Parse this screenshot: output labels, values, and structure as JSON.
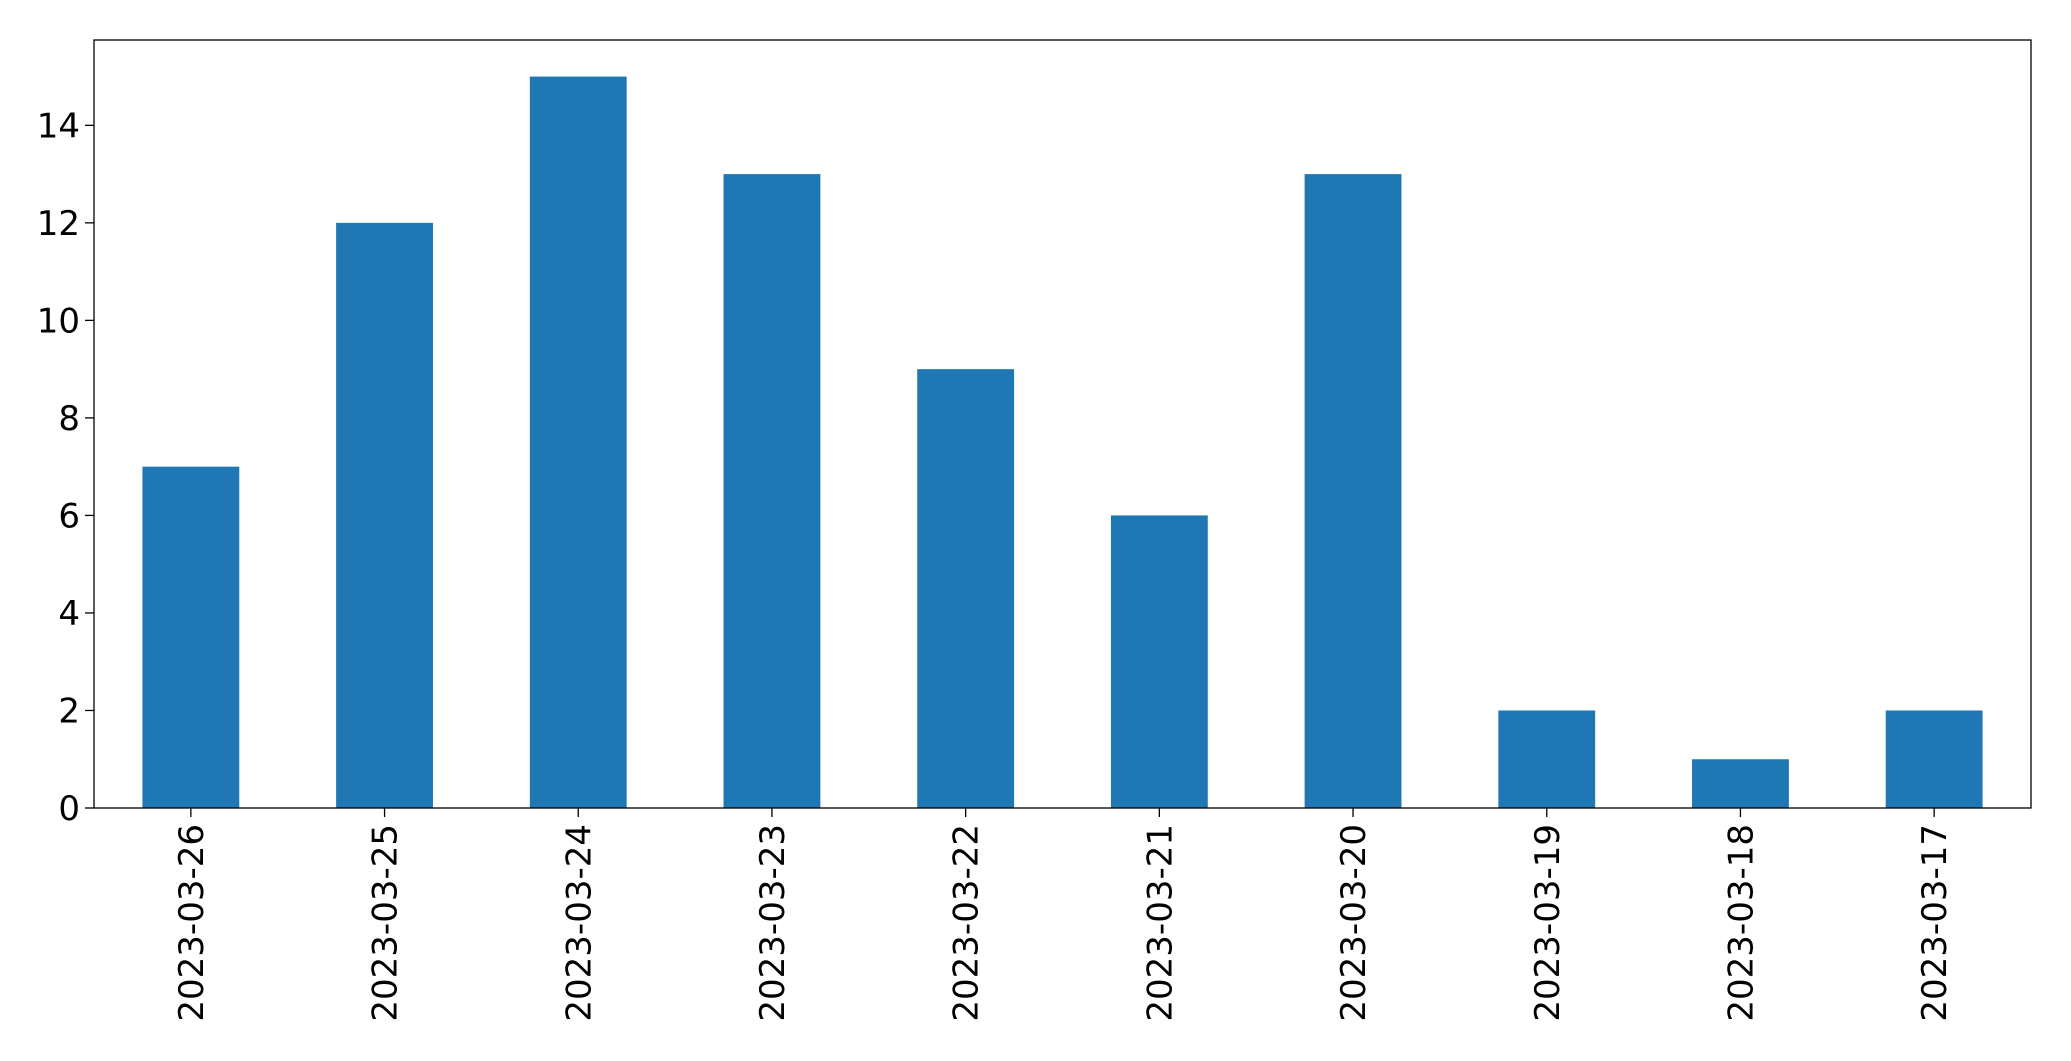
{
  "chart_data": {
    "type": "bar",
    "categories": [
      "2023-03-26",
      "2023-03-25",
      "2023-03-24",
      "2023-03-23",
      "2023-03-22",
      "2023-03-21",
      "2023-03-20",
      "2023-03-19",
      "2023-03-18",
      "2023-03-17"
    ],
    "values": [
      7,
      12,
      15,
      13,
      9,
      6,
      13,
      2,
      1,
      2
    ],
    "color": "#1f77b4",
    "ylim": [
      0,
      15.75
    ],
    "yticks": [
      0,
      2,
      4,
      6,
      8,
      10,
      12,
      14
    ],
    "grid": false
  }
}
